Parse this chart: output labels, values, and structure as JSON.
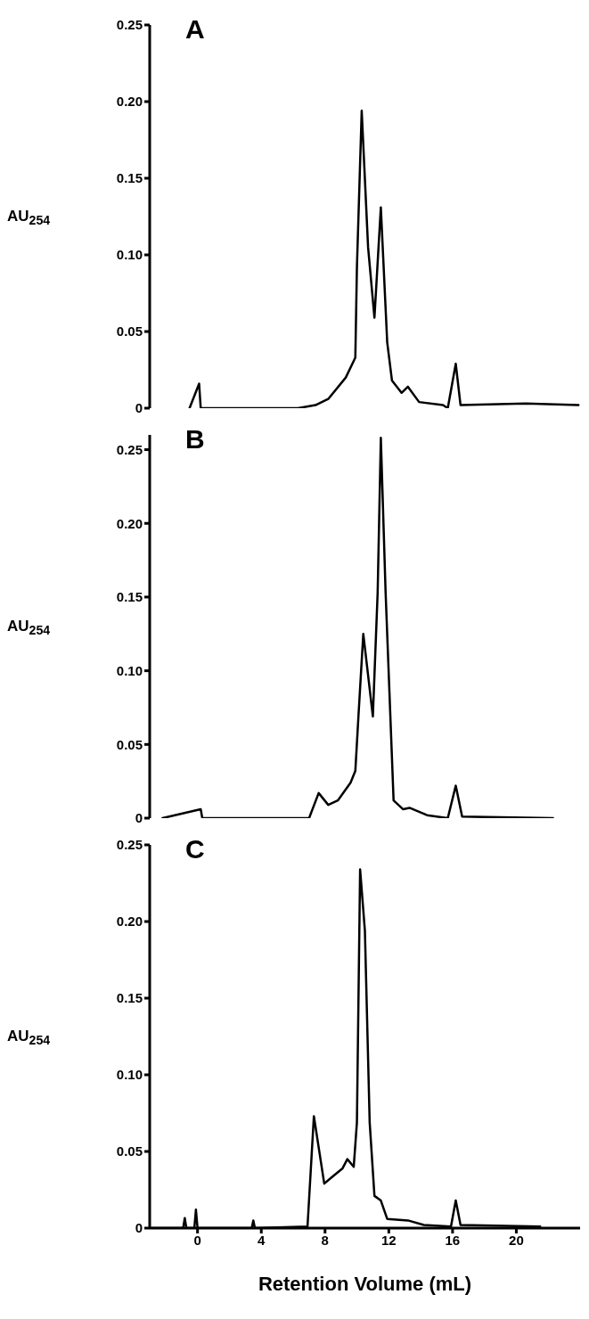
{
  "chart_data": [
    {
      "type": "line",
      "title": "A",
      "ylabel": "AU$_{254}$",
      "xlim": [
        -3,
        24
      ],
      "ylim": [
        0,
        0.25
      ],
      "tick_labels": "y",
      "marker": "none",
      "line_style": "solid",
      "yticks": [
        {
          "value": 0,
          "label": "0"
        },
        {
          "value": 0.05,
          "label": "0.05"
        },
        {
          "value": 0.1,
          "label": "0.10"
        },
        {
          "value": 0.15,
          "label": "0.15"
        },
        {
          "value": 0.2,
          "label": "0.20"
        },
        {
          "value": 0.25,
          "label": "0.25"
        }
      ],
      "series": [
        {
          "color": "#000000",
          "x": [
            -0.5,
            0.1,
            0.2,
            6.3,
            7.4,
            8.2,
            9.3,
            9.9,
            10.0,
            10.3,
            10.7,
            11.1,
            11.5,
            11.9,
            12.2,
            12.8,
            13.2,
            13.9,
            15.4,
            15.7,
            16.2,
            16.5,
            20.6,
            23.9
          ],
          "values": [
            0,
            0.016,
            0,
            0,
            0.002,
            0.006,
            0.02,
            0.033,
            0.092,
            0.194,
            0.105,
            0.059,
            0.131,
            0.043,
            0.018,
            0.01,
            0.014,
            0.004,
            0.002,
            0,
            0.029,
            0.002,
            0.003,
            0.002
          ]
        }
      ]
    },
    {
      "type": "line",
      "title": "B",
      "ylabel": "AU$_{254}$",
      "xlim": [
        -3,
        24
      ],
      "ylim": [
        0,
        0.26
      ],
      "tick_labels": "y",
      "marker": "none",
      "line_style": "solid",
      "yticks": [
        {
          "value": 0,
          "label": "0"
        },
        {
          "value": 0.05,
          "label": "0.05"
        },
        {
          "value": 0.1,
          "label": "0.10"
        },
        {
          "value": 0.15,
          "label": "0.15"
        },
        {
          "value": 0.2,
          "label": "0.20"
        },
        {
          "value": 0.25,
          "label": "0.25"
        }
      ],
      "series": [
        {
          "color": "#000000",
          "x": [
            -2.2,
            0.2,
            0.3,
            7.0,
            7.6,
            8.2,
            8.8,
            9.6,
            9.9,
            10.1,
            10.4,
            11.0,
            11.3,
            11.5,
            11.8,
            12.3,
            12.9,
            13.3,
            14.4,
            15.7,
            16.2,
            16.6,
            22.3
          ],
          "values": [
            0,
            0.006,
            0,
            0,
            0.017,
            0.009,
            0.012,
            0.024,
            0.032,
            0.07,
            0.125,
            0.069,
            0.153,
            0.258,
            0.153,
            0.012,
            0.006,
            0.007,
            0.002,
            0,
            0.022,
            0.001,
            0
          ]
        }
      ]
    },
    {
      "type": "line",
      "title": "C",
      "ylabel": "AU$_{254}$",
      "xlabel": "Retention Volume (mL)",
      "xlim": [
        -3,
        24
      ],
      "ylim": [
        0,
        0.25
      ],
      "marker": "none",
      "line_style": "solid",
      "xticks": [
        0,
        4,
        8,
        12,
        16,
        20
      ],
      "yticks": [
        {
          "value": 0,
          "label": "0"
        },
        {
          "value": 0.05,
          "label": "0.05"
        },
        {
          "value": 0.1,
          "label": "0.10"
        },
        {
          "value": 0.15,
          "label": "0.15"
        },
        {
          "value": 0.2,
          "label": "0.20"
        },
        {
          "value": 0.25,
          "label": "0.25"
        }
      ],
      "series": [
        {
          "color": "#000000",
          "x": [
            -2.9,
            -0.9,
            -0.8,
            -0.7,
            -0.2,
            -0.1,
            0.0,
            3.4,
            3.5,
            3.6,
            6.9,
            7.3,
            7.95,
            8.4,
            9.1,
            9.4,
            9.8,
            10.0,
            10.2,
            10.5,
            10.8,
            11.1,
            11.5,
            11.9,
            13.2,
            14.2,
            15.9,
            16.2,
            16.5,
            21.5
          ],
          "values": [
            0,
            0,
            0.0065,
            0,
            0,
            0.012,
            0,
            0,
            0.005,
            0,
            0.001,
            0.073,
            0.029,
            0.033,
            0.039,
            0.045,
            0.04,
            0.069,
            0.234,
            0.194,
            0.069,
            0.021,
            0.018,
            0.006,
            0.005,
            0.002,
            0.001,
            0.018,
            0.002,
            0.001
          ]
        }
      ]
    }
  ]
}
